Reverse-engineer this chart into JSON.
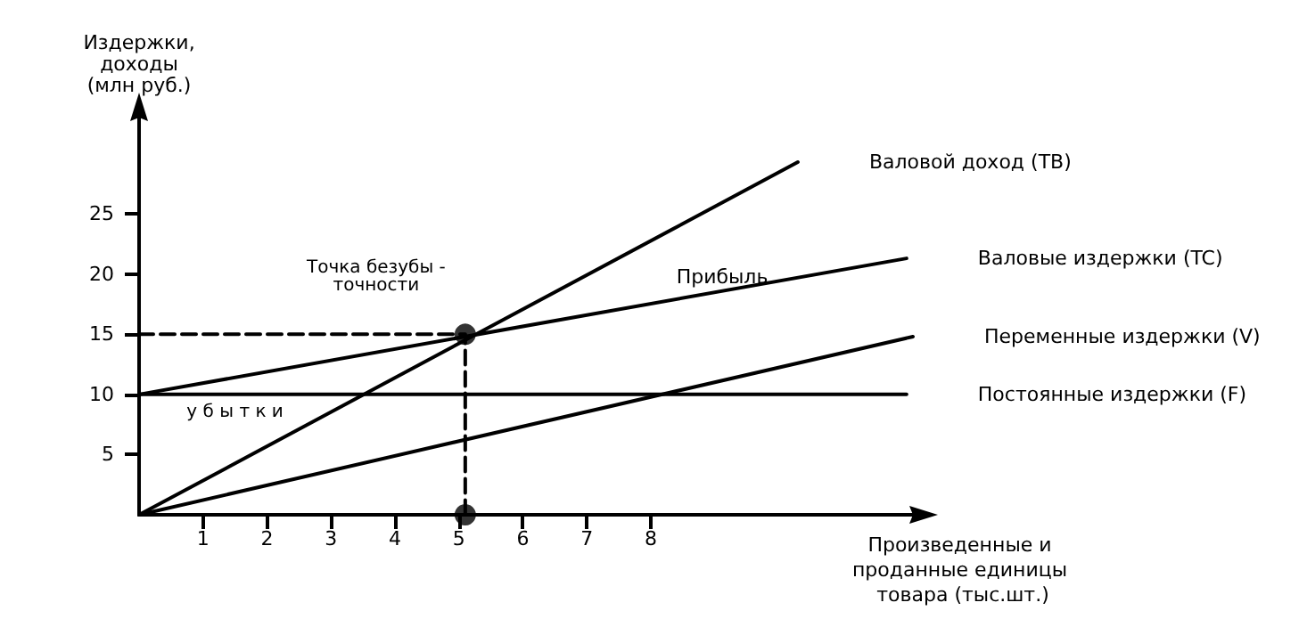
{
  "chart_data": {
    "type": "line",
    "xlabel": "Произведенные и проданные единицы товара (тыс.шт.)",
    "ylabel": "Издержки, доходы (млн руб.)",
    "xlim": [
      0,
      12.1
    ],
    "ylim": [
      0,
      33
    ],
    "xticks": [
      1,
      2,
      3,
      4,
      5,
      6,
      7,
      8
    ],
    "yticks": [
      5,
      10,
      15,
      20,
      25
    ],
    "grid": false,
    "legend": false,
    "marker": "none",
    "series": [
      {
        "name": "Валовой доход (TB)",
        "color": "#000000",
        "x": [
          0,
          10.3
        ],
        "values": [
          0,
          29.3
        ]
      },
      {
        "name": "Валовые издержки (TC)",
        "color": "#000000",
        "x": [
          0,
          12
        ],
        "values": [
          10,
          21.3
        ]
      },
      {
        "name": "Переменные издержки (V)",
        "color": "#000000",
        "x": [
          0,
          12.1
        ],
        "values": [
          0,
          14.8
        ]
      },
      {
        "name": "Постоянные издержки (F)",
        "color": "#000000",
        "x": [
          0,
          12
        ],
        "values": [
          10,
          10
        ]
      },
      {
        "color": "#000000",
        "x": [
          0,
          5.1,
          5.1
        ],
        "values": [
          15,
          15,
          0
        ],
        "line_style": "dashed"
      },
      {
        "type": "scatter",
        "color": "#000000",
        "x": [
          5.1,
          5.1
        ],
        "values": [
          15,
          0
        ],
        "marker": "circle"
      }
    ],
    "annotations": [
      {
        "text": "Точка безубы -\nточности",
        "x": 5.1,
        "y": 15
      },
      "Прибыль",
      {
        "text": "у б ы т к и",
        "x": 1.5,
        "y": 10
      }
    ]
  }
}
